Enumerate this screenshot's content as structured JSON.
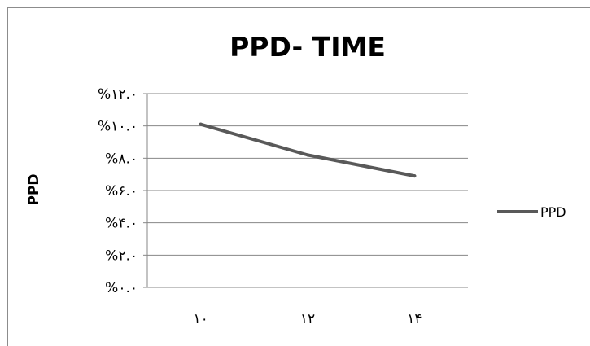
{
  "chart_data": {
    "type": "line",
    "title": "PPD- TIME",
    "xlabel": "",
    "ylabel": "PPD",
    "categories": [
      "۱۰",
      "۱۲",
      "۱۴"
    ],
    "series": [
      {
        "name": "PPD",
        "values": [
          10.1,
          8.2,
          6.9
        ],
        "color": "#595959"
      }
    ],
    "ylim": [
      0,
      12
    ],
    "yticks": [
      0,
      2,
      4,
      6,
      8,
      10,
      12
    ],
    "ytick_labels": [
      "%۰.۰",
      "%۲.۰",
      "%۴.۰",
      "%۶.۰",
      "%۸.۰",
      "%۱۰.۰",
      "%۱۲.۰"
    ],
    "grid": true,
    "legend": "right"
  }
}
